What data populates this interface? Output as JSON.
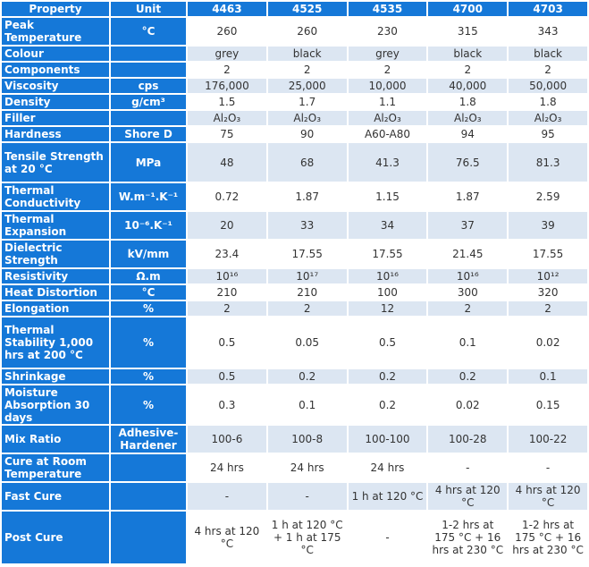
{
  "headers": [
    "Property",
    "Unit",
    "4463",
    "4525",
    "4535",
    "4700",
    "4703"
  ],
  "rows": [
    {
      "property": "Peak Temperature",
      "unit": "°C",
      "values": [
        "260",
        "260",
        "230",
        "315",
        "343"
      ]
    },
    {
      "property": "Colour",
      "unit": "",
      "values": [
        "grey",
        "black",
        "grey",
        "black",
        "black"
      ]
    },
    {
      "property": "Components",
      "unit": "",
      "values": [
        "2",
        "2",
        "2",
        "2",
        "2"
      ]
    },
    {
      "property": "Viscosity",
      "unit": "cps",
      "values": [
        "176,000",
        "25,000",
        "10,000",
        "40,000",
        "50,000"
      ]
    },
    {
      "property": "Density",
      "unit": "g/cm³",
      "values": [
        "1.5",
        "1.7",
        "1.1",
        "1.8",
        "1.8"
      ]
    },
    {
      "property": "Filler",
      "unit": "",
      "values": [
        "Al₂O₃",
        "Al₂O₃",
        "Al₂O₃",
        "Al₂O₃",
        "Al₂O₃"
      ]
    },
    {
      "property": "Hardness",
      "unit": "Shore D",
      "values": [
        "75",
        "90",
        "A60-A80",
        "94",
        "95"
      ]
    },
    {
      "property": "Tensile Strength at 20 °C",
      "unit": "MPa",
      "values": [
        "48",
        "68",
        "41.3",
        "76.5",
        "81.3"
      ]
    },
    {
      "property": "Thermal Conductivity",
      "unit": "W.m⁻¹.K⁻¹",
      "values": [
        "0.72",
        "1.87",
        "1.15",
        "1.87",
        "2.59"
      ]
    },
    {
      "property": "Thermal Expansion",
      "unit": "10⁻⁶.K⁻¹",
      "values": [
        "20",
        "33",
        "34",
        "37",
        "39"
      ]
    },
    {
      "property": "Dielectric Strength",
      "unit": "kV/mm",
      "values": [
        "23.4",
        "17.55",
        "17.55",
        "21.45",
        "17.55"
      ]
    },
    {
      "property": "Resistivity",
      "unit": "Ω.m",
      "values": [
        "10¹⁶",
        "10¹⁷",
        "10¹⁶",
        "10¹⁶",
        "10¹²"
      ]
    },
    {
      "property": "Heat Distortion",
      "unit": "°C",
      "values": [
        "210",
        "210",
        "100",
        "300",
        "320"
      ]
    },
    {
      "property": "Elongation",
      "unit": "%",
      "values": [
        "2",
        "2",
        "12",
        "2",
        "2"
      ]
    },
    {
      "property": "Thermal Stability 1,000 hrs at 200 °C",
      "unit": "%",
      "values": [
        "0.5",
        "0.05",
        "0.5",
        "0.1",
        "0.02"
      ]
    },
    {
      "property": "Shrinkage",
      "unit": "%",
      "values": [
        "0.5",
        "0.2",
        "0.2",
        "0.2",
        "0.1"
      ]
    },
    {
      "property": "Moisture Absorption 30 days",
      "unit": "%",
      "values": [
        "0.3",
        "0.1",
        "0.2",
        "0.02",
        "0.15"
      ]
    },
    {
      "property": "Mix Ratio",
      "unit": "Adhesive-Hardener",
      "values": [
        "100-6",
        "100-8",
        "100-100",
        "100-28",
        "100-22"
      ]
    },
    {
      "property": "Cure at Room Temperature",
      "unit": "",
      "values": [
        "24 hrs",
        "24 hrs",
        "24 hrs",
        "-",
        "-"
      ]
    },
    {
      "property": "Fast Cure",
      "unit": "",
      "values": [
        "-",
        "-",
        "1 h at 120 °C",
        "4 hrs at 120 °C",
        "4 hrs at 120 °C"
      ]
    },
    {
      "property": "Post Cure",
      "unit": "",
      "values": [
        "4 hrs at 120 °C",
        "1 h at 120 °C + 1 h at 175 °C",
        "-",
        "1-2 hrs at 175 °C + 16 hrs at 230 °C",
        "1-2 hrs at 175 °C + 16 hrs at 230 °C"
      ]
    }
  ]
}
